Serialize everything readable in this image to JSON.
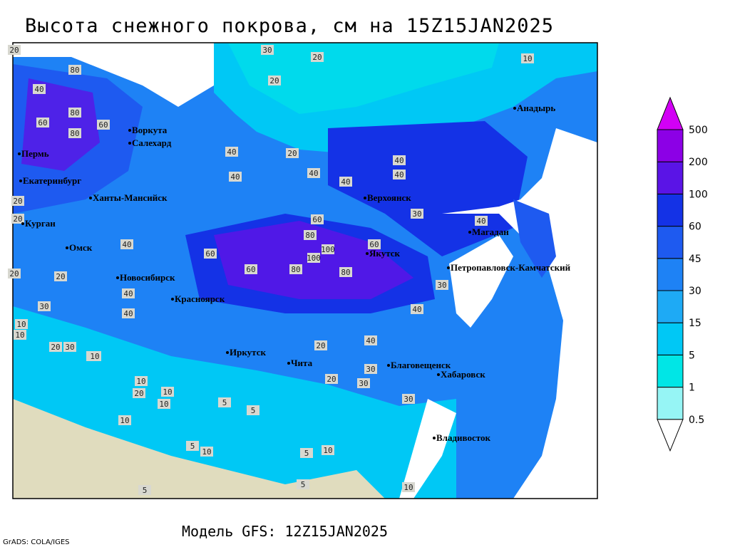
{
  "title": "Высота снежного покрова, см на 15Z15JAN2025",
  "footer": "Модель GFS: 12Z15JAN2025",
  "credit": "GrADS: COLA/IGES",
  "cities": [
    "Пермь",
    "Воркута",
    "Салехард",
    "Екатеринбург",
    "Ханты-Мансийск",
    "Курган",
    "Омск",
    "Новосибирск",
    "Красноярск",
    "Иркутск",
    "Чита",
    "Верхоянск",
    "Якутск",
    "Магадан",
    "Анадырь",
    "Петропавловск-Камчатский",
    "Благовещенск",
    "Хабаровск",
    "Владивосток"
  ],
  "contour_labels": [
    20,
    30,
    20,
    10,
    20,
    40,
    80,
    80,
    60,
    60,
    80,
    40,
    20,
    40,
    40,
    40,
    40,
    40,
    30,
    40,
    60,
    80,
    100,
    100,
    80,
    60,
    60,
    60,
    80,
    30,
    40,
    20,
    40,
    30,
    10,
    30,
    20,
    10,
    20,
    10,
    10,
    10,
    5,
    5,
    5,
    10,
    20,
    30,
    30,
    20,
    10,
    5,
    40,
    40,
    10,
    5,
    5,
    10,
    30,
    20,
    40,
    20,
    20,
    10,
    10
  ],
  "legend": {
    "levels": [
      0.5,
      1,
      5,
      15,
      30,
      45,
      60,
      100,
      200,
      500
    ],
    "colors": [
      "#ffffff",
      "#96f5f5",
      "#00e6e6",
      "#00c8f5",
      "#1eaaf5",
      "#1e82f5",
      "#1e5af0",
      "#1432e6",
      "#5a14e6",
      "#8c00e6",
      "#d200f5"
    ]
  }
}
